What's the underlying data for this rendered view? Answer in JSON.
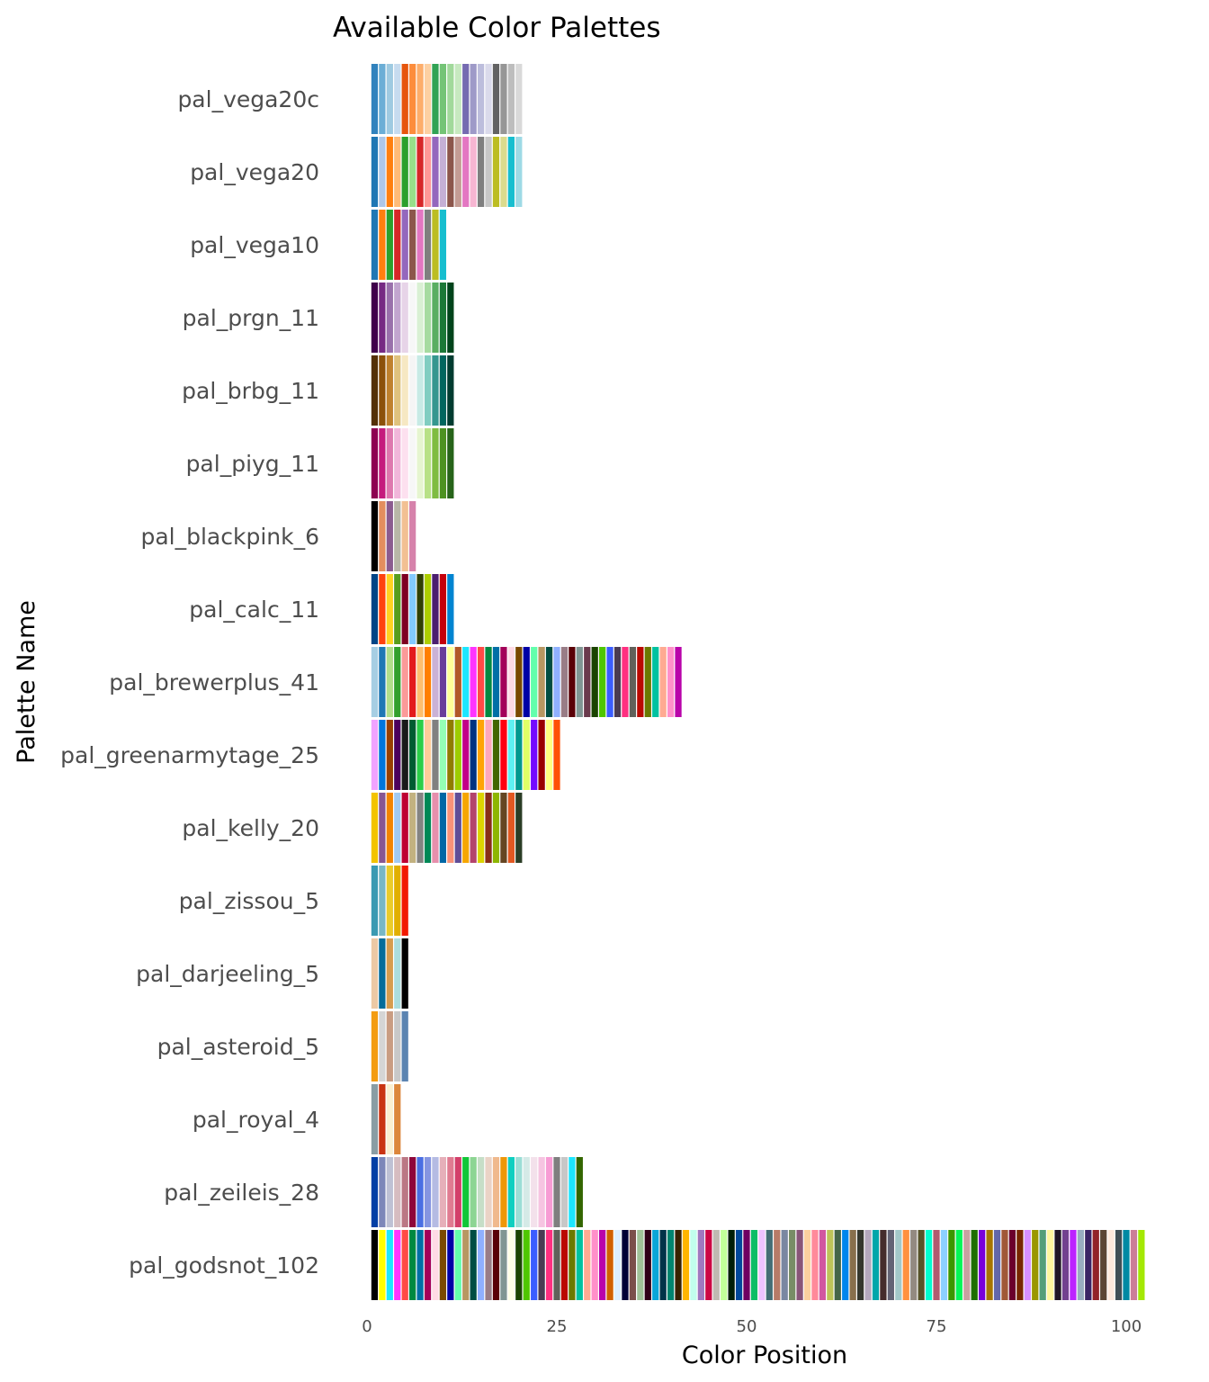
{
  "chart_data": {
    "type": "bar",
    "title": "Available Color Palettes",
    "xlabel": "Color Position",
    "ylabel": "Palette Name",
    "xlim": [
      0,
      103.5
    ],
    "x_ticks": [
      0,
      25,
      50,
      75,
      100
    ],
    "x_tick_labels": [
      "0",
      "25",
      "50",
      "75",
      "100"
    ],
    "grid": false,
    "legend": "none",
    "palettes": [
      {
        "name": "pal_vega20c",
        "colors": [
          "#3182bd",
          "#6baed6",
          "#9ecae1",
          "#c6dbef",
          "#e6550d",
          "#fd8d3c",
          "#fdae6b",
          "#fdd0a2",
          "#31a354",
          "#74c476",
          "#a1d99b",
          "#c7e9c0",
          "#756bb1",
          "#9e9ac8",
          "#bcbddc",
          "#dadaeb",
          "#636363",
          "#969696",
          "#bdbdbd",
          "#d9d9d9"
        ]
      },
      {
        "name": "pal_vega20",
        "colors": [
          "#1f77b4",
          "#aec7e8",
          "#ff7f0e",
          "#ffbb78",
          "#2ca02c",
          "#98df8a",
          "#d62728",
          "#ff9896",
          "#9467bd",
          "#c5b0d5",
          "#8c564b",
          "#c49c94",
          "#e377c2",
          "#f7b6d2",
          "#7f7f7f",
          "#c7c7c7",
          "#bcbd22",
          "#dbdb8d",
          "#17becf",
          "#9edae5"
        ]
      },
      {
        "name": "pal_vega10",
        "colors": [
          "#1f77b4",
          "#ff7f0e",
          "#2ca02c",
          "#d62728",
          "#9467bd",
          "#8c564b",
          "#e377c2",
          "#7f7f7f",
          "#bcbd22",
          "#17becf"
        ]
      },
      {
        "name": "pal_prgn_11",
        "colors": [
          "#40004b",
          "#762a83",
          "#9970ab",
          "#c2a5cf",
          "#e7d4e8",
          "#f7f7f7",
          "#d9f0d3",
          "#a6dba0",
          "#5aae61",
          "#1b7837",
          "#00441b"
        ]
      },
      {
        "name": "pal_brbg_11",
        "colors": [
          "#543005",
          "#8c510a",
          "#bf812d",
          "#dfc27d",
          "#f6e8c3",
          "#f5f5f5",
          "#c7eae5",
          "#80cdc1",
          "#35978f",
          "#01665e",
          "#003c30"
        ]
      },
      {
        "name": "pal_piyg_11",
        "colors": [
          "#8e0152",
          "#c51b7d",
          "#de77ae",
          "#f1b6da",
          "#fde0ef",
          "#f7f7f7",
          "#e6f5d0",
          "#b8e186",
          "#7fbc41",
          "#4d9221",
          "#276419"
        ]
      },
      {
        "name": "pal_blackpink_6",
        "colors": [
          "#000000",
          "#e38e5e",
          "#8b5b8f",
          "#b8b6a7",
          "#f2c093",
          "#d682ab"
        ]
      },
      {
        "name": "pal_calc_11",
        "colors": [
          "#004586",
          "#ff420e",
          "#ffd320",
          "#579d1c",
          "#7e0021",
          "#83caff",
          "#314004",
          "#aecf00",
          "#4b1f6f",
          "#c5000b",
          "#0084d1"
        ]
      },
      {
        "name": "pal_brewerplus_41",
        "colors": [
          "#a6cee3",
          "#1f78b4",
          "#b2df8a",
          "#33a02c",
          "#fb9a99",
          "#e31a1c",
          "#fdbf6f",
          "#ff7f00",
          "#cab2d6",
          "#6a3d9a",
          "#ffff99",
          "#b15928",
          "#1ce6ff",
          "#ff34ff",
          "#ff4a46",
          "#008941",
          "#006fa6",
          "#a30059",
          "#ffdbe5",
          "#7a4900",
          "#0000a6",
          "#63ffac",
          "#b79762",
          "#004d43",
          "#8fb0ff",
          "#997d87",
          "#5a0007",
          "#809693",
          "#6a3a4c",
          "#1b4400",
          "#4fc601",
          "#3b5dff",
          "#4a3b53",
          "#ff2f80",
          "#61615a",
          "#ba0900",
          "#6b7900",
          "#00c2a0",
          "#ffaa92",
          "#ff90c9",
          "#b903aa"
        ]
      },
      {
        "name": "pal_greenarmytage_25",
        "colors": [
          "#f0a3ff",
          "#0075dc",
          "#993f00",
          "#4c005c",
          "#191919",
          "#005c31",
          "#2bce48",
          "#ffcc99",
          "#808080",
          "#94ffb5",
          "#8f7c00",
          "#9dcc00",
          "#c20088",
          "#003380",
          "#ffa405",
          "#ffa8bb",
          "#426600",
          "#ff0010",
          "#5ef1f2",
          "#00998f",
          "#e0ff66",
          "#740aff",
          "#990000",
          "#ffff80",
          "#ff5005"
        ]
      },
      {
        "name": "pal_kelly_20",
        "colors": [
          "#f3c300",
          "#875692",
          "#f38400",
          "#a1caf1",
          "#be0032",
          "#c2b280",
          "#848482",
          "#008856",
          "#e68fac",
          "#0067a5",
          "#f99379",
          "#604e97",
          "#f6a600",
          "#b3446c",
          "#dcd300",
          "#882d17",
          "#8db600",
          "#654522",
          "#e25822",
          "#2b3d26"
        ]
      },
      {
        "name": "pal_zissou_5",
        "colors": [
          "#3b9ab2",
          "#78b7c5",
          "#ebcc2a",
          "#e1af00",
          "#f21a00"
        ]
      },
      {
        "name": "pal_darjeeling_5",
        "colors": [
          "#ecc9a5",
          "#046c9a",
          "#d69c4e",
          "#abddde",
          "#000000"
        ]
      },
      {
        "name": "pal_asteroid_5",
        "colors": [
          "#f39c12",
          "#d5d5d5",
          "#c99c82",
          "#c8c8c8",
          "#5b84b1"
        ]
      },
      {
        "name": "pal_royal_4",
        "colors": [
          "#899da4",
          "#c93312",
          "#faefd1",
          "#dc863b"
        ]
      },
      {
        "name": "pal_zeileis_28",
        "colors": [
          "#023fa5",
          "#7d87b9",
          "#bec1d4",
          "#d6bcc0",
          "#bb7784",
          "#8e063b",
          "#4a6fe3",
          "#8595e1",
          "#b5bbe3",
          "#e6afb9",
          "#e07b91",
          "#d33f6a",
          "#11c638",
          "#8dd593",
          "#c6dec7",
          "#ead3c6",
          "#f0b98d",
          "#ef9708",
          "#0fcfc0",
          "#9cded6",
          "#d5eae7",
          "#f3e1eb",
          "#f6c4e1",
          "#f79cd4",
          "#7f7f7f",
          "#c7c7c7",
          "#1ce6ff",
          "#336600"
        ]
      },
      {
        "name": "pal_godsnot_102",
        "colors": [
          "#000000",
          "#ffff00",
          "#1ce6ff",
          "#ff34ff",
          "#ff4a46",
          "#008941",
          "#006fa6",
          "#a30059",
          "#ffdbe5",
          "#7a4900",
          "#0000a6",
          "#63ffac",
          "#b79762",
          "#004d43",
          "#8fb0ff",
          "#997d87",
          "#5a0007",
          "#809693",
          "#feffe6",
          "#1b4400",
          "#4fc601",
          "#3b5dff",
          "#4a3b53",
          "#ff2f80",
          "#61615a",
          "#ba0900",
          "#6b7900",
          "#00c2a0",
          "#ffaa92",
          "#ff90c9",
          "#b903aa",
          "#d16100",
          "#ddefff",
          "#000035",
          "#7b4f4b",
          "#a1c299",
          "#300018",
          "#0aa6d8",
          "#013349",
          "#00846f",
          "#372101",
          "#ffb500",
          "#c2ffed",
          "#a079bf",
          "#cc0744",
          "#c0b9b2",
          "#c2ff99",
          "#001e09",
          "#00489c",
          "#6f0062",
          "#0cbd66",
          "#eec3ff",
          "#456d75",
          "#b77b68",
          "#7a87a1",
          "#788d66",
          "#885578",
          "#fad09f",
          "#ff8a9a",
          "#d157a0",
          "#bec459",
          "#456648",
          "#0086ed",
          "#886f4c",
          "#34362d",
          "#b4a8bd",
          "#00a6aa",
          "#452c2c",
          "#636375",
          "#a3c8c9",
          "#ff913f",
          "#938a81",
          "#575329",
          "#00fecf",
          "#b05b6f",
          "#8cd0ff",
          "#3b9700",
          "#04f757",
          "#c8a1a1",
          "#1e6e00",
          "#7900d7",
          "#a77500",
          "#6367a9",
          "#a05837",
          "#6b002c",
          "#772600",
          "#d790ff",
          "#9b9700",
          "#549e79",
          "#fff69f",
          "#201625",
          "#72418f",
          "#bc23ff",
          "#99adc0",
          "#3a2465",
          "#922329",
          "#5b4534",
          "#fde8dc",
          "#404e55",
          "#0089a3",
          "#cb7e98",
          "#a4e804"
        ]
      }
    ]
  }
}
